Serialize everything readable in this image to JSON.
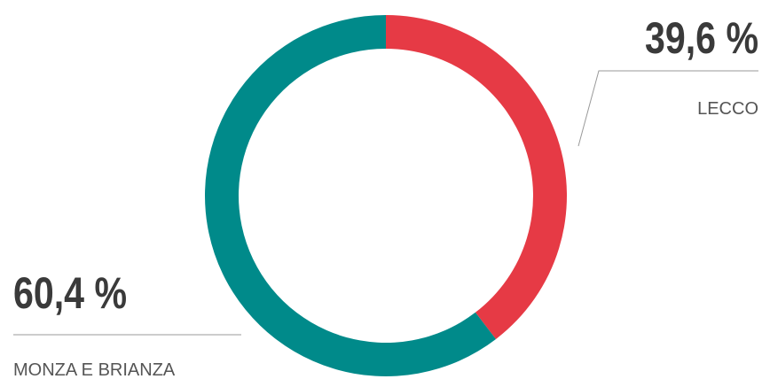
{
  "chart_data": {
    "type": "donut",
    "categories": [
      "LECCO",
      "MONZA E BRIANZA"
    ],
    "values": [
      39.6,
      60.4
    ],
    "value_labels": [
      "39,6 %",
      "60,4 %"
    ],
    "colors": [
      "#e63a45",
      "#008a8a"
    ]
  }
}
